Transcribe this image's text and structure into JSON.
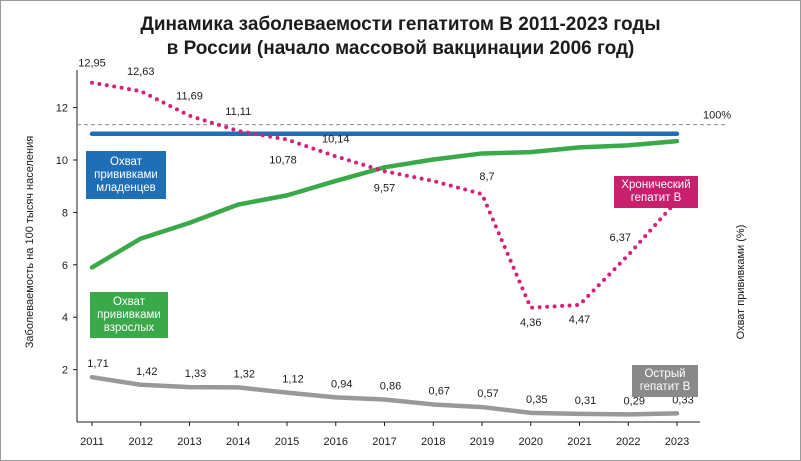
{
  "title_line1": "Динамика заболеваемости гепатитом В 2011-2023 годы",
  "title_line2": "в России (начало массовой вакцинации 2006 год)",
  "chart_data": {
    "type": "line",
    "x": [
      "2011",
      "2012",
      "2013",
      "2014",
      "2015",
      "2016",
      "2017",
      "2018",
      "2019",
      "2020",
      "2021",
      "2022",
      "2023"
    ],
    "ylabel": "Заболеваемость на 100 тысяч населения",
    "ylabel_right": "Охват прививками (%)",
    "ylim": [
      0,
      14
    ],
    "yticks": [
      "2",
      "4",
      "6",
      "8",
      "10",
      "12"
    ],
    "reference_label": "100%",
    "series": [
      {
        "name": "Хронический гепатит В",
        "style": "dotted",
        "color": "#d6217a",
        "values": [
          12.95,
          12.63,
          11.69,
          11.11,
          10.78,
          10.14,
          9.57,
          9.2,
          8.7,
          4.36,
          4.47,
          6.37,
          8.45
        ],
        "labels": [
          "12,95",
          "12,63",
          "11,69",
          "11,11",
          "10,78",
          "10,14",
          "9,57",
          "",
          "8,7",
          "4,36",
          "4,47",
          "6,37",
          "8,45"
        ]
      },
      {
        "name": "Острый гепатит В",
        "color": "#999999",
        "values": [
          1.71,
          1.42,
          1.33,
          1.32,
          1.12,
          0.94,
          0.86,
          0.67,
          0.57,
          0.35,
          0.31,
          0.29,
          0.33
        ],
        "labels": [
          "1,71",
          "1,42",
          "1,33",
          "1,32",
          "1,12",
          "0,94",
          "0,86",
          "0,67",
          "0,57",
          "0,35",
          "0,31",
          "0,29",
          "0,33"
        ]
      },
      {
        "name": "Охват прививками взрослых",
        "color": "#3aa94a",
        "values": [
          5.9,
          7.0,
          7.6,
          8.3,
          8.65,
          9.2,
          9.72,
          10.02,
          10.25,
          10.3,
          10.48,
          10.56,
          10.72
        ]
      },
      {
        "name": "Охват прививками младенцев",
        "color": "#1f6fb7",
        "values": [
          11.0,
          11.0,
          11.0,
          11.0,
          11.0,
          11.0,
          11.0,
          11.0,
          11.0,
          11.0,
          11.0,
          11.0,
          11.0
        ]
      }
    ],
    "reference_line_value": 11.35,
    "legend_boxes": {
      "infants": "Охват прививками младенцев",
      "adults": "Охват прививками взрослых",
      "chronic": "Хронический гепатит В",
      "acute": "Острый гепатит В"
    },
    "colors": {
      "chronic_box": "#c8206f",
      "acute_box": "#8a8a8a",
      "adult_box": "#3aa94a",
      "infant_box": "#1f6fb7"
    }
  }
}
